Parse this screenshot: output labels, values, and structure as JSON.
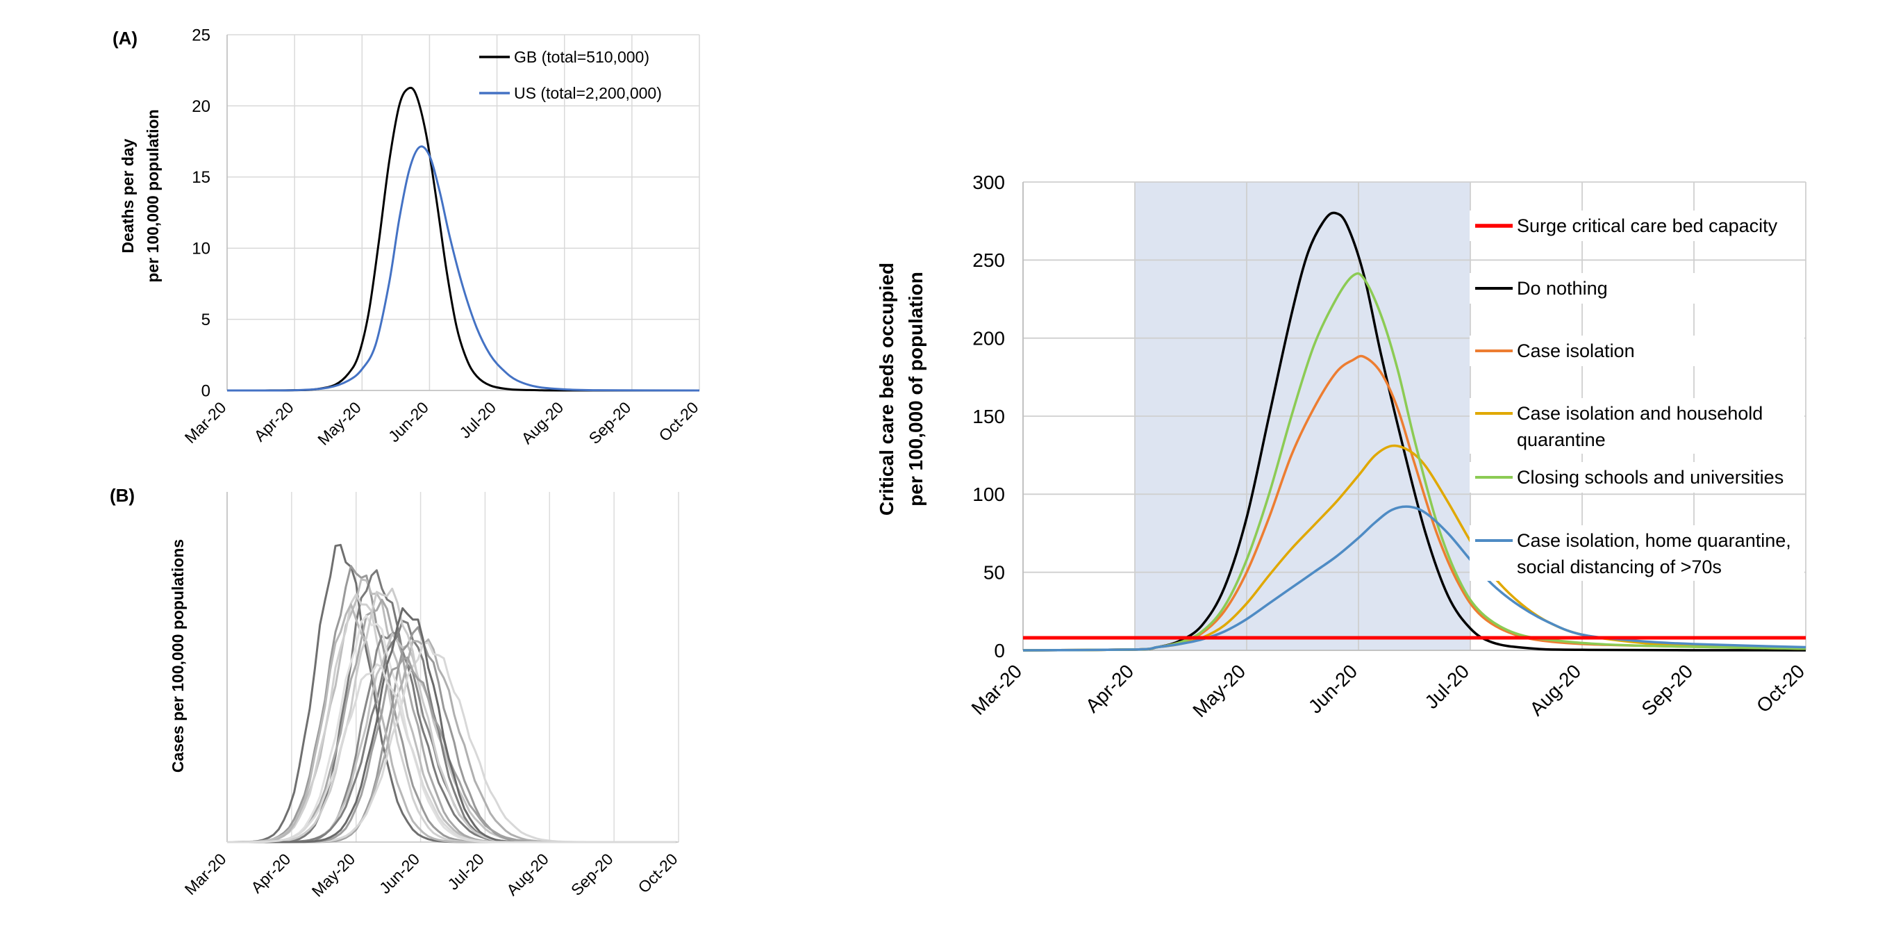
{
  "chart_data": [
    {
      "panel_label": "(A)",
      "type": "line",
      "x_tick_labels": [
        "Mar-20",
        "Apr-20",
        "May-20",
        "Jun-20",
        "Jul-20",
        "Aug-20",
        "Sep-20",
        "Oct-20"
      ],
      "ylabel_line1": "Deaths per day",
      "ylabel_line2": "per 100,000 population",
      "ylim": [
        0,
        25
      ],
      "y_ticks": [
        0,
        5,
        10,
        15,
        20,
        25
      ],
      "grid": true,
      "legend_placement": "top-right",
      "series": [
        {
          "name": "GB (total=510,000)",
          "color": "#000000",
          "points": [
            [
              0,
              0
            ],
            [
              0.5,
              0
            ],
            [
              1,
              0.02
            ],
            [
              1.3,
              0.08
            ],
            [
              1.6,
              0.4
            ],
            [
              1.8,
              1.2
            ],
            [
              1.95,
              2.5
            ],
            [
              2.1,
              5.5
            ],
            [
              2.25,
              10.5
            ],
            [
              2.4,
              16
            ],
            [
              2.55,
              20
            ],
            [
              2.68,
              21.2
            ],
            [
              2.8,
              20.8
            ],
            [
              2.95,
              18
            ],
            [
              3.1,
              13.5
            ],
            [
              3.25,
              8.5
            ],
            [
              3.4,
              4.5
            ],
            [
              3.55,
              2.2
            ],
            [
              3.7,
              1.0
            ],
            [
              3.9,
              0.35
            ],
            [
              4.2,
              0.08
            ],
            [
              4.6,
              0.02
            ],
            [
              5,
              0
            ],
            [
              7,
              0
            ]
          ]
        },
        {
          "name": "US (total=2,200,000)",
          "color": "#4472C4",
          "points": [
            [
              0,
              0
            ],
            [
              1,
              0.02
            ],
            [
              1.5,
              0.2
            ],
            [
              1.8,
              0.7
            ],
            [
              2.0,
              1.5
            ],
            [
              2.2,
              3.2
            ],
            [
              2.4,
              7.5
            ],
            [
              2.55,
              12
            ],
            [
              2.7,
              15.5
            ],
            [
              2.85,
              17.1
            ],
            [
              3.0,
              16.5
            ],
            [
              3.15,
              14
            ],
            [
              3.3,
              10.8
            ],
            [
              3.5,
              7.2
            ],
            [
              3.7,
              4.4
            ],
            [
              3.9,
              2.5
            ],
            [
              4.1,
              1.4
            ],
            [
              4.3,
              0.7
            ],
            [
              4.6,
              0.25
            ],
            [
              5,
              0.08
            ],
            [
              5.5,
              0.02
            ],
            [
              7,
              0
            ]
          ]
        }
      ]
    },
    {
      "panel_label": "(B)",
      "type": "line",
      "x_tick_labels": [
        "Mar-20",
        "Apr-20",
        "May-20",
        "Jun-20",
        "Jul-20",
        "Aug-20",
        "Sep-20",
        "Oct-20"
      ],
      "ylabel": "Cases per 100,000 populations",
      "grid": true,
      "y_axis_values_shown": false,
      "series_style": "many unlabeled grey curves",
      "curve_peaks": [
        {
          "peak_x": 1.75,
          "height": 0.84,
          "shade": "#6f6f6f"
        },
        {
          "peak_x": 2.0,
          "height": 0.78,
          "shade": "#9a9a9a"
        },
        {
          "peak_x": 2.15,
          "height": 0.74,
          "shade": "#bdbdbd"
        },
        {
          "peak_x": 2.25,
          "height": 0.76,
          "shade": "#7a7a7a"
        },
        {
          "peak_x": 2.05,
          "height": 0.7,
          "shade": "#d0d0d0"
        },
        {
          "peak_x": 2.35,
          "height": 0.68,
          "shade": "#a8a8a8"
        },
        {
          "peak_x": 2.5,
          "height": 0.6,
          "shade": "#888888"
        },
        {
          "peak_x": 2.6,
          "height": 0.58,
          "shade": "#c4c4c4"
        },
        {
          "peak_x": 2.75,
          "height": 0.62,
          "shade": "#7f7f7f"
        },
        {
          "peak_x": 2.9,
          "height": 0.6,
          "shade": "#999999"
        },
        {
          "peak_x": 3.0,
          "height": 0.58,
          "shade": "#b0b0b0"
        },
        {
          "peak_x": 3.1,
          "height": 0.56,
          "shade": "#d8d8d8"
        },
        {
          "peak_x": 1.9,
          "height": 0.66,
          "shade": "#b8b8b8"
        },
        {
          "peak_x": 2.2,
          "height": 0.64,
          "shade": "#e0e0e0"
        },
        {
          "peak_x": 2.45,
          "height": 0.72,
          "shade": "#cccccc"
        },
        {
          "peak_x": 2.7,
          "height": 0.52,
          "shade": "#a0a0a0"
        },
        {
          "peak_x": 2.8,
          "height": 0.66,
          "shade": "#6a6a6a"
        },
        {
          "peak_x": 2.3,
          "height": 0.5,
          "shade": "#dadada"
        }
      ]
    },
    {
      "panel_label": "",
      "type": "line",
      "x_tick_labels": [
        "Mar-20",
        "Apr-20",
        "May-20",
        "Jun-20",
        "Jul-20",
        "Aug-20",
        "Sep-20",
        "Oct-20"
      ],
      "ylabel_line1": "Critical care beds occupied",
      "ylabel_line2": "per 100,000 of population",
      "ylim": [
        0,
        300
      ],
      "y_ticks": [
        0,
        50,
        100,
        150,
        200,
        250,
        300
      ],
      "grid": true,
      "shaded_interval_x": [
        1.0,
        4.0
      ],
      "shade_color": "#dde4f1",
      "legend_placement": "right",
      "series": [
        {
          "name": "Surge critical care bed capacity",
          "color": "#ff0000",
          "points": [
            [
              0,
              8
            ],
            [
              7,
              8
            ]
          ]
        },
        {
          "name": "Do nothing",
          "color": "#000000",
          "points": [
            [
              0,
              0
            ],
            [
              1,
              0.5
            ],
            [
              1.2,
              2
            ],
            [
              1.4,
              6
            ],
            [
              1.6,
              16
            ],
            [
              1.8,
              40
            ],
            [
              2.0,
              85
            ],
            [
              2.2,
              150
            ],
            [
              2.4,
              215
            ],
            [
              2.55,
              255
            ],
            [
              2.7,
              276
            ],
            [
              2.8,
              280
            ],
            [
              2.9,
              272
            ],
            [
              3.05,
              240
            ],
            [
              3.2,
              190
            ],
            [
              3.4,
              130
            ],
            [
              3.6,
              75
            ],
            [
              3.8,
              35
            ],
            [
              4.0,
              14
            ],
            [
              4.2,
              5
            ],
            [
              4.5,
              1.5
            ],
            [
              5,
              0.3
            ],
            [
              7,
              0
            ]
          ]
        },
        {
          "name": "Case isolation",
          "color": "#ED7D31",
          "points": [
            [
              0,
              0
            ],
            [
              1,
              0.5
            ],
            [
              1.2,
              2
            ],
            [
              1.4,
              5
            ],
            [
              1.6,
              11
            ],
            [
              1.8,
              25
            ],
            [
              2.0,
              50
            ],
            [
              2.2,
              85
            ],
            [
              2.4,
              125
            ],
            [
              2.6,
              155
            ],
            [
              2.8,
              178
            ],
            [
              2.95,
              186
            ],
            [
              3.05,
              188
            ],
            [
              3.2,
              178
            ],
            [
              3.35,
              155
            ],
            [
              3.5,
              120
            ],
            [
              3.7,
              75
            ],
            [
              3.9,
              42
            ],
            [
              4.1,
              22
            ],
            [
              4.4,
              10
            ],
            [
              4.8,
              5
            ],
            [
              5.5,
              3
            ],
            [
              7,
              1
            ]
          ]
        },
        {
          "name": "Case isolation and household quarantine",
          "color": "#E0A800",
          "points": [
            [
              0,
              0
            ],
            [
              1,
              0.5
            ],
            [
              1.2,
              2
            ],
            [
              1.4,
              4
            ],
            [
              1.6,
              8
            ],
            [
              1.8,
              16
            ],
            [
              2.0,
              30
            ],
            [
              2.2,
              48
            ],
            [
              2.4,
              65
            ],
            [
              2.6,
              80
            ],
            [
              2.8,
              95
            ],
            [
              3.0,
              112
            ],
            [
              3.15,
              125
            ],
            [
              3.3,
              131
            ],
            [
              3.45,
              128
            ],
            [
              3.6,
              118
            ],
            [
              3.8,
              95
            ],
            [
              4.0,
              70
            ],
            [
              4.2,
              48
            ],
            [
              4.45,
              30
            ],
            [
              4.7,
              18
            ],
            [
              5.0,
              10
            ],
            [
              5.5,
              5
            ],
            [
              6,
              3
            ],
            [
              7,
              1
            ]
          ]
        },
        {
          "name": "Closing schools and universities",
          "color": "#8CCB54",
          "points": [
            [
              0,
              0
            ],
            [
              1,
              0.5
            ],
            [
              1.2,
              2
            ],
            [
              1.4,
              5
            ],
            [
              1.6,
              12
            ],
            [
              1.8,
              28
            ],
            [
              2.0,
              58
            ],
            [
              2.2,
              100
            ],
            [
              2.4,
              150
            ],
            [
              2.6,
              195
            ],
            [
              2.8,
              225
            ],
            [
              2.95,
              240
            ],
            [
              3.05,
              238
            ],
            [
              3.2,
              215
            ],
            [
              3.35,
              180
            ],
            [
              3.5,
              135
            ],
            [
              3.7,
              82
            ],
            [
              3.9,
              45
            ],
            [
              4.1,
              24
            ],
            [
              4.4,
              11
            ],
            [
              4.8,
              6
            ],
            [
              5.5,
              3
            ],
            [
              7,
              1
            ]
          ]
        },
        {
          "name": "Case isolation, home quarantine, social distancing of >70s",
          "color": "#4E8BC4",
          "points": [
            [
              0,
              0
            ],
            [
              1,
              0.5
            ],
            [
              1.2,
              2
            ],
            [
              1.4,
              4
            ],
            [
              1.6,
              7
            ],
            [
              1.8,
              12
            ],
            [
              2.0,
              20
            ],
            [
              2.2,
              30
            ],
            [
              2.4,
              40
            ],
            [
              2.6,
              50
            ],
            [
              2.8,
              60
            ],
            [
              3.0,
              72
            ],
            [
              3.15,
              82
            ],
            [
              3.3,
              90
            ],
            [
              3.45,
              92
            ],
            [
              3.6,
              88
            ],
            [
              3.8,
              75
            ],
            [
              4.0,
              58
            ],
            [
              4.2,
              42
            ],
            [
              4.45,
              28
            ],
            [
              4.7,
              18
            ],
            [
              5.0,
              10
            ],
            [
              5.5,
              6
            ],
            [
              6,
              4
            ],
            [
              7,
              2
            ]
          ]
        }
      ]
    }
  ]
}
